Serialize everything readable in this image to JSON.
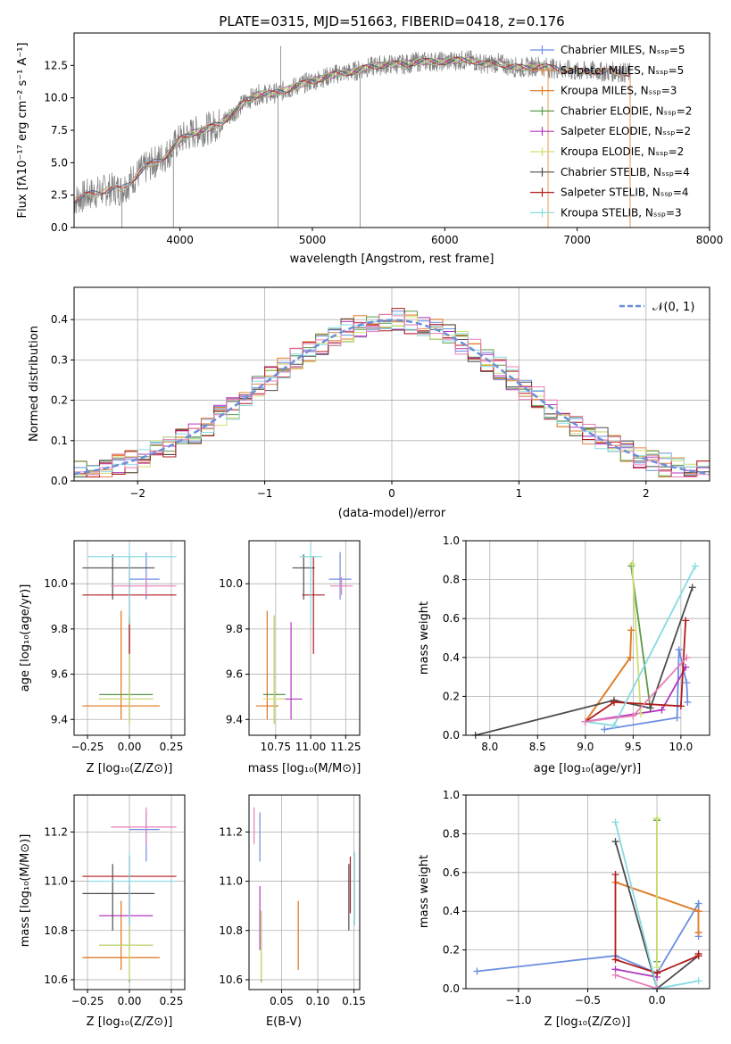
{
  "colors": {
    "chabrier_miles": "#6b8ee0",
    "salpeter_miles": "#e6844f",
    "kroupa_miles": "#e07e2a",
    "chabrier_elodie": "#5a9a4a",
    "salpeter_elodie": "#b236c0",
    "kroupa_elodie": "#cfe070",
    "chabrier_stelib": "#4d4d4d",
    "salpeter_stelib": "#b01c1c",
    "kroupa_stelib": "#86dbe2",
    "pink": "#e87fb8",
    "data_gray": "#808080",
    "normal_dash": "#6a8fd8",
    "grid": "#b0b0b0"
  },
  "chart_data": [
    {
      "type": "line",
      "panel": "spectrum",
      "title": "PLATE=0315, MJD=51663, FIBERID=0418, z=0.176",
      "xlabel": "wavelength [Angstrom, rest frame]",
      "ylabel": "Flux [fλ10⁻¹⁷ erg cm⁻² s⁻¹ A⁻¹]",
      "xlim": [
        3200,
        8000
      ],
      "ylim": [
        0,
        15
      ],
      "xticks": [
        "4000",
        "5000",
        "6000",
        "7000",
        "8000"
      ],
      "yticks": [
        "0.0",
        "2.5",
        "5.0",
        "7.5",
        "10.0",
        "12.5"
      ],
      "grid": false,
      "legend_position": "right",
      "legend": [
        "Chabrier MILES, Nₛₛₚ=5",
        "Salpeter MILES, Nₛₛₚ=5",
        "Kroupa MILES, Nₛₛₚ=3",
        "Chabrier ELODIE, Nₛₛₚ=2",
        "Salpeter ELODIE, Nₛₛₚ=2",
        "Kroupa ELODIE, Nₛₛₚ=2",
        "Chabrier STELIB, Nₛₛₚ=4",
        "Salpeter STELIB, Nₛₛₚ=4",
        "Kroupa STELIB, Nₛₛₚ=3"
      ],
      "continuum": {
        "x": [
          3200,
          3300,
          3400,
          3500,
          3550,
          3600,
          3700,
          3800,
          3900,
          4000,
          4100,
          4200,
          4300,
          4400,
          4500,
          4600,
          4700,
          4800,
          4900,
          5000,
          5100,
          5200,
          5300,
          5400,
          5500,
          5600,
          5700,
          5800,
          5900,
          6000,
          6100,
          6200,
          6300,
          6400,
          6500,
          6600,
          6700,
          6800,
          6900,
          7000,
          7100,
          7200,
          7300,
          7400
        ],
        "y": [
          2.1,
          2.5,
          2.8,
          3.0,
          2.9,
          3.3,
          4.3,
          5.0,
          5.6,
          6.8,
          7.3,
          7.6,
          8.0,
          8.8,
          9.8,
          10.3,
          10.3,
          10.6,
          11.0,
          11.3,
          11.6,
          11.9,
          12.0,
          12.3,
          12.5,
          12.6,
          12.6,
          12.8,
          12.8,
          12.8,
          12.9,
          12.9,
          12.6,
          12.7,
          12.4,
          12.3,
          12.5,
          12.3,
          12.2,
          12.0,
          12.1,
          12.0,
          12.0,
          11.9
        ]
      }
    },
    {
      "type": "line",
      "panel": "residuals",
      "xlabel": "(data-model)/error",
      "ylabel": "Normed distribution",
      "xlim": [
        -2.5,
        2.5
      ],
      "ylim": [
        0,
        0.48
      ],
      "xticks": [
        "−2",
        "−1",
        "0",
        "1",
        "2"
      ],
      "yticks": [
        "0.0",
        "0.1",
        "0.2",
        "0.3",
        "0.4"
      ],
      "grid": true,
      "legend_position": "top-right",
      "legend": [
        "𝒩(0, 1)"
      ]
    },
    {
      "type": "scatter",
      "panel": "age-vs-Z",
      "xlabel": "Z [log₁₀(Z/Z⊙)]",
      "ylabel": "age  [log₁₀(age/yr)]",
      "xlim": [
        -0.33,
        0.33
      ],
      "ylim": [
        9.33,
        10.19
      ],
      "xticks": [
        "−0.25",
        "0.00",
        "0.25"
      ],
      "yticks": [
        "9.4",
        "9.6",
        "9.8",
        "10.0"
      ],
      "grid": true
    },
    {
      "type": "scatter",
      "panel": "age-vs-mass",
      "xlabel": "mass [log₁₀(M/M⊙)]",
      "xlim": [
        10.56,
        11.35
      ],
      "ylim": [
        9.33,
        10.19
      ],
      "xticks": [
        "10.75",
        "11.00",
        "11.25"
      ],
      "yticks": [
        "9.4",
        "9.6",
        "9.8",
        "10.0"
      ],
      "grid": true
    },
    {
      "type": "line",
      "panel": "massweight-vs-age",
      "xlabel": "age  [log₁₀(age/yr)]",
      "ylabel": "mass weight",
      "xlim": [
        7.75,
        10.3
      ],
      "ylim": [
        0,
        1
      ],
      "xticks": [
        "8.0",
        "8.5",
        "9.0",
        "9.5",
        "10.0"
      ],
      "yticks": [
        "0.0",
        "0.2",
        "0.4",
        "0.6",
        "0.8",
        "1.0"
      ],
      "grid": true
    },
    {
      "type": "scatter",
      "panel": "mass-vs-Z",
      "xlabel": "Z [log₁₀(Z/Z⊙)]",
      "ylabel": "mass [log₁₀(M/M⊙)]",
      "xlim": [
        -0.33,
        0.33
      ],
      "ylim": [
        10.56,
        11.35
      ],
      "xticks": [
        "−0.25",
        "0.00",
        "0.25"
      ],
      "yticks": [
        "10.6",
        "10.8",
        "11.0",
        "11.2"
      ],
      "grid": true
    },
    {
      "type": "scatter",
      "panel": "mass-vs-ebv",
      "xlabel": "E(B-V)",
      "xlim": [
        0.005,
        0.158
      ],
      "ylim": [
        10.56,
        11.35
      ],
      "xticks": [
        "0.05",
        "0.10",
        "0.15"
      ],
      "yticks": [
        "10.6",
        "10.8",
        "11.0",
        "11.2"
      ],
      "grid": true
    },
    {
      "type": "line",
      "panel": "massweight-vs-Z",
      "xlabel": "Z [log₁₀(Z/Z⊙)]",
      "ylabel": "mass weight",
      "xlim": [
        -1.38,
        0.38
      ],
      "ylim": [
        0,
        1
      ],
      "xticks": [
        "−1.0",
        "−0.5",
        "0.0"
      ],
      "yticks": [
        "0.0",
        "0.2",
        "0.4",
        "0.6",
        "0.8",
        "1.0"
      ],
      "grid": true
    }
  ],
  "fits": [
    {
      "key": "chabrier_miles",
      "age": 10.02,
      "age_lo": 9.93,
      "age_hi": 10.14,
      "Z": 0.1,
      "Z_lo": 0.0,
      "Z_hi": 0.18,
      "mass": 11.21,
      "mass_lo": 11.08,
      "mass_hi": 11.28,
      "ebv": 0.02,
      "ebv_lo": 11.08,
      "ebv_hi": 11.28,
      "ages": [
        9.2,
        9.96,
        9.98,
        10.06,
        10.07
      ],
      "weights": [
        0.03,
        0.09,
        0.44,
        0.27,
        0.17
      ],
      "Zs": [
        -1.3,
        -0.3,
        0.0,
        0.3,
        0.3
      ],
      "Zw": [
        0.09,
        0.17,
        0.08,
        0.44,
        0.27
      ]
    },
    {
      "key": "salpeter_miles",
      "age": 9.46,
      "age_lo": 9.4,
      "age_hi": 9.88,
      "Z": -0.05,
      "Z_lo": -0.28,
      "Z_hi": 0.18,
      "mass": 10.69,
      "mass_lo": 10.64,
      "mass_hi": 10.92,
      "ebv": 0.073,
      "ebv_lo": 10.64,
      "ebv_hi": 10.92,
      "ages": [
        9.0,
        9.47,
        9.48
      ],
      "weights": [
        0.07,
        0.4,
        0.54
      ],
      "Zs": [
        -0.3,
        0.3,
        0.3
      ],
      "Zw": [
        0.55,
        0.4,
        0.29
      ]
    },
    {
      "key": "kroupa_miles",
      "age": 9.46,
      "age_lo": 9.4,
      "age_hi": 9.88,
      "Z": -0.05,
      "Z_lo": -0.28,
      "Z_hi": 0.18,
      "mass": 10.69,
      "mass_lo": 10.64,
      "mass_hi": 10.92,
      "ebv": 0.073,
      "ebv_lo": 10.64,
      "ebv_hi": 10.92,
      "ages": [
        9.0,
        9.47,
        9.48
      ],
      "weights": [
        0.07,
        0.4,
        0.54
      ],
      "Zs": [
        -0.3,
        0.3,
        0.3
      ],
      "Zw": [
        0.55,
        0.4,
        0.29
      ]
    },
    {
      "key": "chabrier_elodie",
      "age": 9.51,
      "age_lo": 9.38,
      "age_hi": 9.86,
      "Z": 0.0,
      "Z_lo": -0.18,
      "Z_hi": 0.14,
      "mass": 10.74,
      "mass_lo": 10.59,
      "mass_hi": 10.88,
      "ebv": 0.022,
      "ebv_lo": 10.59,
      "ebv_hi": 10.88,
      "ages": [
        9.48,
        9.68
      ],
      "weights": [
        0.87,
        0.14
      ],
      "Zs": [
        0.0,
        0.0
      ],
      "Zw": [
        0.87,
        0.14
      ]
    },
    {
      "key": "salpeter_elodie",
      "age": 9.49,
      "age_lo": 9.4,
      "age_hi": 9.83,
      "Z": 0.0,
      "Z_lo": -0.18,
      "Z_hi": 0.14,
      "mass": 10.86,
      "mass_lo": 10.72,
      "mass_hi": 10.98,
      "ebv": 0.02,
      "ebv_lo": 10.72,
      "ebv_hi": 10.98,
      "ages": [
        9.0,
        9.8,
        10.05
      ],
      "weights": [
        0.07,
        0.13,
        0.35
      ],
      "Zs": [
        -0.3,
        0.0
      ],
      "Zw": [
        0.1,
        0.06
      ]
    },
    {
      "key": "kroupa_elodie",
      "age": 9.49,
      "age_lo": 9.38,
      "age_hi": 9.86,
      "Z": 0.0,
      "Z_lo": -0.18,
      "Z_hi": 0.14,
      "mass": 10.74,
      "mass_lo": 10.6,
      "mass_hi": 10.88,
      "ebv": 0.022,
      "ebv_lo": 10.6,
      "ebv_hi": 10.88,
      "ages": [
        9.49,
        9.58
      ],
      "weights": [
        0.88,
        0.11
      ],
      "Zs": [
        0.0,
        0.0
      ],
      "Zw": [
        0.88,
        0.11
      ]
    },
    {
      "key": "chabrier_stelib",
      "age": 10.07,
      "age_lo": 9.93,
      "age_hi": 10.13,
      "Z": -0.1,
      "Z_lo": -0.28,
      "Z_hi": 0.15,
      "mass": 10.95,
      "mass_lo": 10.8,
      "mass_hi": 11.07,
      "ebv": 0.143,
      "ebv_lo": 10.8,
      "ebv_hi": 11.07,
      "ages": [
        7.85,
        9.3,
        9.68,
        10.12
      ],
      "weights": [
        0.0,
        0.18,
        0.14,
        0.76
      ],
      "Zs": [
        -0.3,
        0.0,
        0.3
      ],
      "Zw": [
        0.76,
        0.0,
        0.17
      ]
    },
    {
      "key": "salpeter_stelib",
      "age": 9.95,
      "age_lo": 9.69,
      "age_hi": 10.12,
      "Z": 0.0,
      "Z_lo": -0.28,
      "Z_hi": 0.28,
      "mass": 11.02,
      "mass_lo": 10.87,
      "mass_hi": 11.1,
      "ebv": 0.145,
      "ebv_lo": 10.87,
      "ebv_hi": 11.1,
      "ages": [
        9.0,
        9.3,
        10.0,
        10.05
      ],
      "weights": [
        0.07,
        0.17,
        0.15,
        0.59
      ],
      "Zs": [
        -0.3,
        -0.3,
        0.0,
        0.3,
        0.3
      ],
      "Zw": [
        0.59,
        0.15,
        0.08,
        0.17,
        0.18
      ]
    },
    {
      "key": "kroupa_stelib",
      "age": 10.12,
      "age_lo": 9.82,
      "age_hi": 10.17,
      "Z": 0.0,
      "Z_lo": -0.25,
      "Z_hi": 0.28,
      "mass": 11.0,
      "mass_lo": 10.82,
      "mass_hi": 11.12,
      "ebv": 0.151,
      "ebv_lo": 10.82,
      "ebv_hi": 11.12,
      "ages": [
        9.0,
        9.3,
        10.15
      ],
      "weights": [
        0.07,
        0.05,
        0.87
      ],
      "Zs": [
        -0.3,
        0.0,
        0.3
      ],
      "Zw": [
        0.86,
        0.0,
        0.04
      ]
    },
    {
      "key": "pink",
      "age": 9.99,
      "age_lo": 9.95,
      "age_hi": 10.03,
      "Z": 0.1,
      "Z_lo": -0.11,
      "Z_hi": 0.28,
      "mass": 11.22,
      "mass_lo": 11.15,
      "mass_hi": 11.3,
      "ebv": 0.012,
      "ebv_lo": 11.15,
      "ebv_hi": 11.3,
      "ages": [
        9.0,
        9.5,
        10.06
      ],
      "weights": [
        0.07,
        0.1,
        0.4
      ],
      "Zs": [
        -0.3,
        0.0
      ],
      "Zw": [
        0.07,
        0.0
      ]
    }
  ]
}
